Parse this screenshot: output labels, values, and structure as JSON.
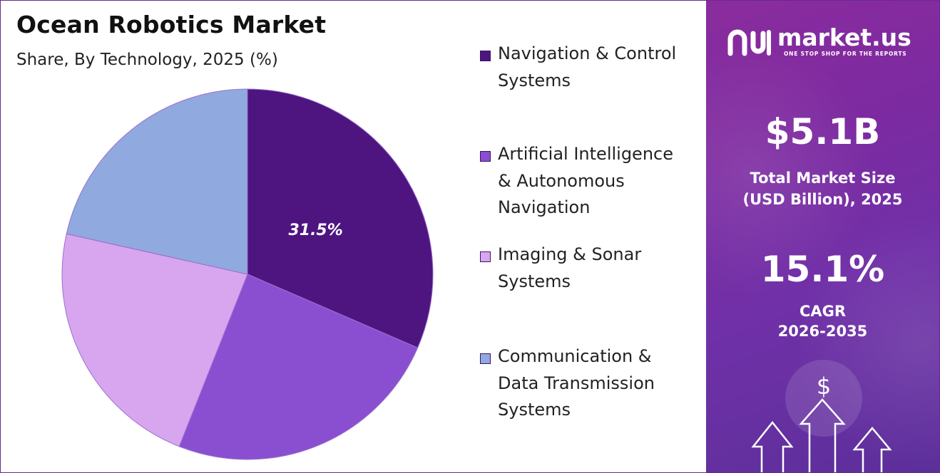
{
  "chart_data": {
    "type": "pie",
    "title": "Ocean Robotics Market",
    "subtitle": "Share, By Technology, 2025 (%)",
    "slices": [
      {
        "name": "Navigation & Control Systems",
        "value": 31.5,
        "color": "#4e1581",
        "label": "31.5%"
      },
      {
        "name": "Artificial Intelligence & Autonomous Navigation",
        "value": 24.5,
        "color": "#8a4fd0",
        "label": ""
      },
      {
        "name": "Imaging & Sonar Systems",
        "value": 22.5,
        "color": "#d7a6ef",
        "label": ""
      },
      {
        "name": "Communication & Data Transmission Systems",
        "value": 21.5,
        "color": "#90a9df",
        "label": ""
      }
    ],
    "legend_position": "right"
  },
  "legend": {
    "items": [
      {
        "label": "Navigation & Control Systems",
        "color": "#4e1581"
      },
      {
        "label": "Artificial Intelligence & Autonomous Navigation",
        "color": "#8a4fd0"
      },
      {
        "label": "Imaging & Sonar Systems",
        "color": "#d7a6ef"
      },
      {
        "label": "Communication & Data Transmission Systems",
        "color": "#90a9df"
      }
    ]
  },
  "brand": {
    "name": "market.us",
    "tagline": "ONE STOP SHOP FOR THE REPORTS",
    "icon": "market-us-logo-icon"
  },
  "stats": {
    "market_size_value": "$5.1B",
    "market_size_label_1": "Total Market Size",
    "market_size_label_2": "(USD Billion), 2025",
    "cagr_value": "15.1%",
    "cagr_label_1": "CAGR",
    "cagr_label_2": "2026-2035"
  },
  "decor": {
    "dollar_symbol": "$"
  },
  "colors": {
    "panel": "#7a2ca2",
    "accent": "#4e1581"
  }
}
